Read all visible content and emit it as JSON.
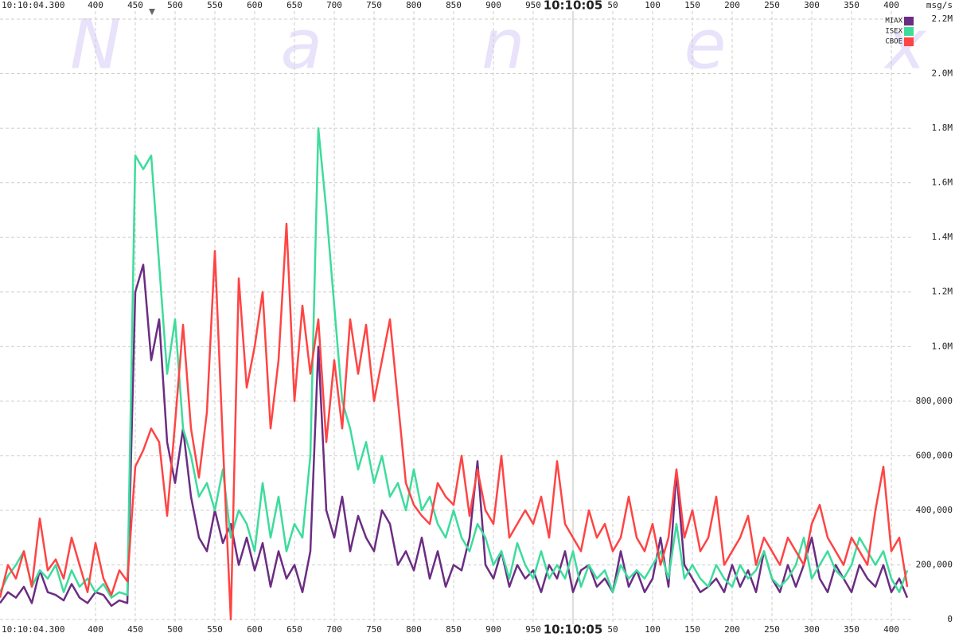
{
  "chart_data": {
    "type": "line",
    "watermark": "Nanex",
    "start_label": "10:10:04.300",
    "y_label": "msg/s",
    "grid": true,
    "legend": "top-right",
    "xlim": [
      280,
      1428
    ],
    "ylim": [
      0,
      2200000
    ],
    "xticks": [
      400,
      450,
      500,
      550,
      600,
      650,
      700,
      750,
      800,
      850,
      900,
      950,
      {
        "value": 1000,
        "label": "10:10:05"
      },
      {
        "value": 1050,
        "label": "50"
      },
      {
        "value": 1100,
        "label": "100"
      },
      {
        "value": 1150,
        "label": "150"
      },
      {
        "value": 1200,
        "label": "200"
      },
      {
        "value": 1250,
        "label": "250"
      },
      {
        "value": 1300,
        "label": "300"
      },
      {
        "value": 1350,
        "label": "350"
      },
      {
        "value": 1400,
        "label": "400"
      }
    ],
    "yticks": [
      0,
      {
        "value": 200000,
        "label": "200,000"
      },
      {
        "value": 400000,
        "label": "400,000"
      },
      {
        "value": 600000,
        "label": "600,000"
      },
      {
        "value": 800000,
        "label": "800,000"
      },
      {
        "value": 1000000,
        "label": "1.0M"
      },
      {
        "value": 1200000,
        "label": "1.2M"
      },
      {
        "value": 1400000,
        "label": "1.4M"
      },
      {
        "value": 1600000,
        "label": "1.6M"
      },
      {
        "value": 1800000,
        "label": "1.8M"
      },
      {
        "value": 2000000,
        "label": "2.0M"
      },
      {
        "value": 2200000,
        "label": "2.2M"
      }
    ],
    "x": [
      280,
      290,
      300,
      310,
      320,
      330,
      340,
      350,
      360,
      370,
      380,
      390,
      400,
      410,
      420,
      430,
      440,
      450,
      460,
      470,
      480,
      490,
      500,
      510,
      520,
      530,
      540,
      550,
      560,
      570,
      580,
      590,
      600,
      610,
      620,
      630,
      640,
      650,
      660,
      670,
      680,
      690,
      700,
      710,
      720,
      730,
      740,
      750,
      760,
      770,
      780,
      790,
      800,
      810,
      820,
      830,
      840,
      850,
      860,
      870,
      880,
      890,
      900,
      910,
      920,
      930,
      940,
      950,
      960,
      970,
      980,
      990,
      1000,
      1010,
      1020,
      1030,
      1040,
      1050,
      1060,
      1070,
      1080,
      1090,
      1100,
      1110,
      1120,
      1130,
      1140,
      1150,
      1160,
      1170,
      1180,
      1190,
      1200,
      1210,
      1220,
      1230,
      1240,
      1250,
      1260,
      1270,
      1280,
      1290,
      1300,
      1310,
      1320,
      1330,
      1340,
      1350,
      1360,
      1370,
      1380,
      1390,
      1400,
      1410,
      1420
    ],
    "series": [
      {
        "name": "MIAX",
        "color": "#6b2d83",
        "values": [
          60000,
          100000,
          80000,
          120000,
          60000,
          180000,
          100000,
          90000,
          70000,
          130000,
          80000,
          60000,
          100000,
          90000,
          50000,
          70000,
          60000,
          1200000,
          1300000,
          950000,
          1100000,
          650000,
          500000,
          700000,
          450000,
          300000,
          250000,
          400000,
          280000,
          350000,
          200000,
          300000,
          180000,
          280000,
          120000,
          250000,
          150000,
          200000,
          100000,
          250000,
          1000000,
          400000,
          300000,
          450000,
          250000,
          380000,
          300000,
          250000,
          400000,
          350000,
          200000,
          250000,
          180000,
          300000,
          150000,
          250000,
          120000,
          200000,
          180000,
          300000,
          580000,
          200000,
          150000,
          250000,
          120000,
          200000,
          150000,
          180000,
          100000,
          200000,
          150000,
          250000,
          100000,
          180000,
          200000,
          120000,
          150000,
          100000,
          250000,
          120000,
          180000,
          100000,
          150000,
          300000,
          120000,
          540000,
          200000,
          150000,
          100000,
          120000,
          150000,
          100000,
          200000,
          120000,
          180000,
          100000,
          250000,
          150000,
          100000,
          200000,
          120000,
          200000,
          300000,
          150000,
          100000,
          200000,
          150000,
          100000,
          200000,
          150000,
          120000,
          200000,
          100000,
          150000,
          80000
        ]
      },
      {
        "name": "ISEX",
        "color": "#3ddc9c",
        "values": [
          100000,
          160000,
          200000,
          250000,
          120000,
          180000,
          150000,
          200000,
          100000,
          180000,
          120000,
          150000,
          100000,
          130000,
          80000,
          100000,
          90000,
          1700000,
          1650000,
          1700000,
          1300000,
          900000,
          1100000,
          700000,
          600000,
          450000,
          500000,
          400000,
          550000,
          300000,
          400000,
          350000,
          250000,
          500000,
          300000,
          450000,
          250000,
          350000,
          300000,
          600000,
          1800000,
          1500000,
          1150000,
          800000,
          700000,
          550000,
          650000,
          500000,
          600000,
          450000,
          500000,
          400000,
          550000,
          400000,
          450000,
          350000,
          300000,
          400000,
          300000,
          250000,
          350000,
          300000,
          200000,
          250000,
          150000,
          280000,
          200000,
          150000,
          250000,
          150000,
          200000,
          150000,
          250000,
          120000,
          200000,
          150000,
          180000,
          100000,
          200000,
          150000,
          180000,
          150000,
          200000,
          250000,
          150000,
          350000,
          150000,
          200000,
          150000,
          120000,
          200000,
          150000,
          120000,
          200000,
          150000,
          180000,
          250000,
          150000,
          120000,
          150000,
          200000,
          300000,
          150000,
          200000,
          250000,
          180000,
          150000,
          200000,
          300000,
          250000,
          200000,
          250000,
          150000,
          100000,
          180000
        ]
      },
      {
        "name": "CBOE",
        "color": "#ff4444",
        "values": [
          80000,
          200000,
          150000,
          250000,
          120000,
          370000,
          180000,
          220000,
          150000,
          300000,
          200000,
          100000,
          280000,
          150000,
          90000,
          180000,
          140000,
          560000,
          620000,
          700000,
          650000,
          380000,
          720000,
          1080000,
          700000,
          520000,
          760000,
          1350000,
          650000,
          0,
          1250000,
          850000,
          1000000,
          1200000,
          700000,
          950000,
          1450000,
          800000,
          1150000,
          900000,
          1100000,
          650000,
          950000,
          700000,
          1100000,
          900000,
          1080000,
          800000,
          950000,
          1100000,
          800000,
          500000,
          420000,
          380000,
          350000,
          500000,
          450000,
          420000,
          600000,
          380000,
          550000,
          400000,
          350000,
          600000,
          300000,
          350000,
          400000,
          350000,
          450000,
          300000,
          580000,
          350000,
          300000,
          250000,
          400000,
          300000,
          350000,
          250000,
          300000,
          450000,
          300000,
          250000,
          350000,
          200000,
          300000,
          550000,
          300000,
          400000,
          250000,
          300000,
          450000,
          200000,
          250000,
          300000,
          380000,
          200000,
          300000,
          250000,
          200000,
          300000,
          250000,
          200000,
          350000,
          420000,
          300000,
          250000,
          200000,
          300000,
          250000,
          200000,
          400000,
          560000,
          250000,
          300000,
          120000
        ]
      }
    ]
  }
}
